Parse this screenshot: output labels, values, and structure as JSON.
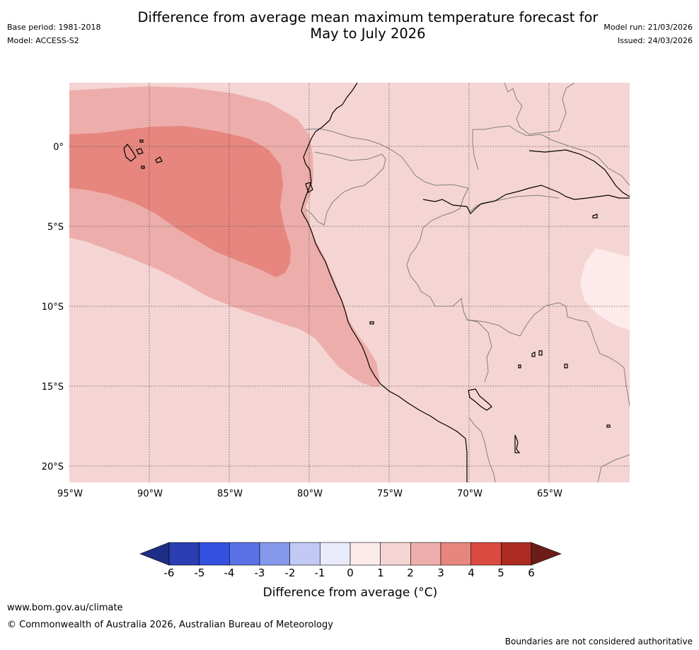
{
  "header": {
    "title_line1": "Difference from average mean maximum temperature forecast for",
    "title_line2": "May to July 2026",
    "base_period": "Base period: 1981-2018",
    "model": "Model: ACCESS-S2",
    "model_run": "Model run: 21/03/2026",
    "issued": "Issued: 24/03/2026"
  },
  "map": {
    "lat_labels": [
      "0°",
      "5°S",
      "10°S",
      "15°S",
      "20°S"
    ],
    "lon_labels": [
      "95°W",
      "90°W",
      "85°W",
      "80°W",
      "75°W",
      "70°W",
      "65°W"
    ],
    "anomaly_bands": [
      {
        "range": "1–2",
        "color": "#f5d5d3",
        "role": "background (most of map)"
      },
      {
        "range": "2–3",
        "color": "#edaeab",
        "role": "Pacific off Ecuador/Peru and coastal strip"
      },
      {
        "range": "3–4",
        "color": "#e6867f",
        "role": "core near Galapagos"
      },
      {
        "range": "0–1",
        "color": "#fcebea",
        "role": "patch in eastern Brazil/Bolivia"
      }
    ]
  },
  "colorbar": {
    "labels": [
      "-6",
      "-5",
      "-4",
      "-3",
      "-2",
      "-1",
      "0",
      "1",
      "2",
      "3",
      "4",
      "5",
      "6"
    ],
    "colors": [
      "#1e2d85",
      "#2a3eb1",
      "#3350e0",
      "#5a72e6",
      "#8598ec",
      "#c1c9f4",
      "#e9ebfb",
      "#fcebea",
      "#f5d5d3",
      "#edaeab",
      "#e6867f",
      "#db4a3f",
      "#ab2b21",
      "#6d1d18"
    ],
    "title": "Difference from average (°C)"
  },
  "footer": {
    "website": "www.bom.gov.au/climate",
    "copyright": "© Commonwealth of Australia 2026, Australian Bureau of Meteorology",
    "disclaimer": "Boundaries are not considered authoritative"
  }
}
